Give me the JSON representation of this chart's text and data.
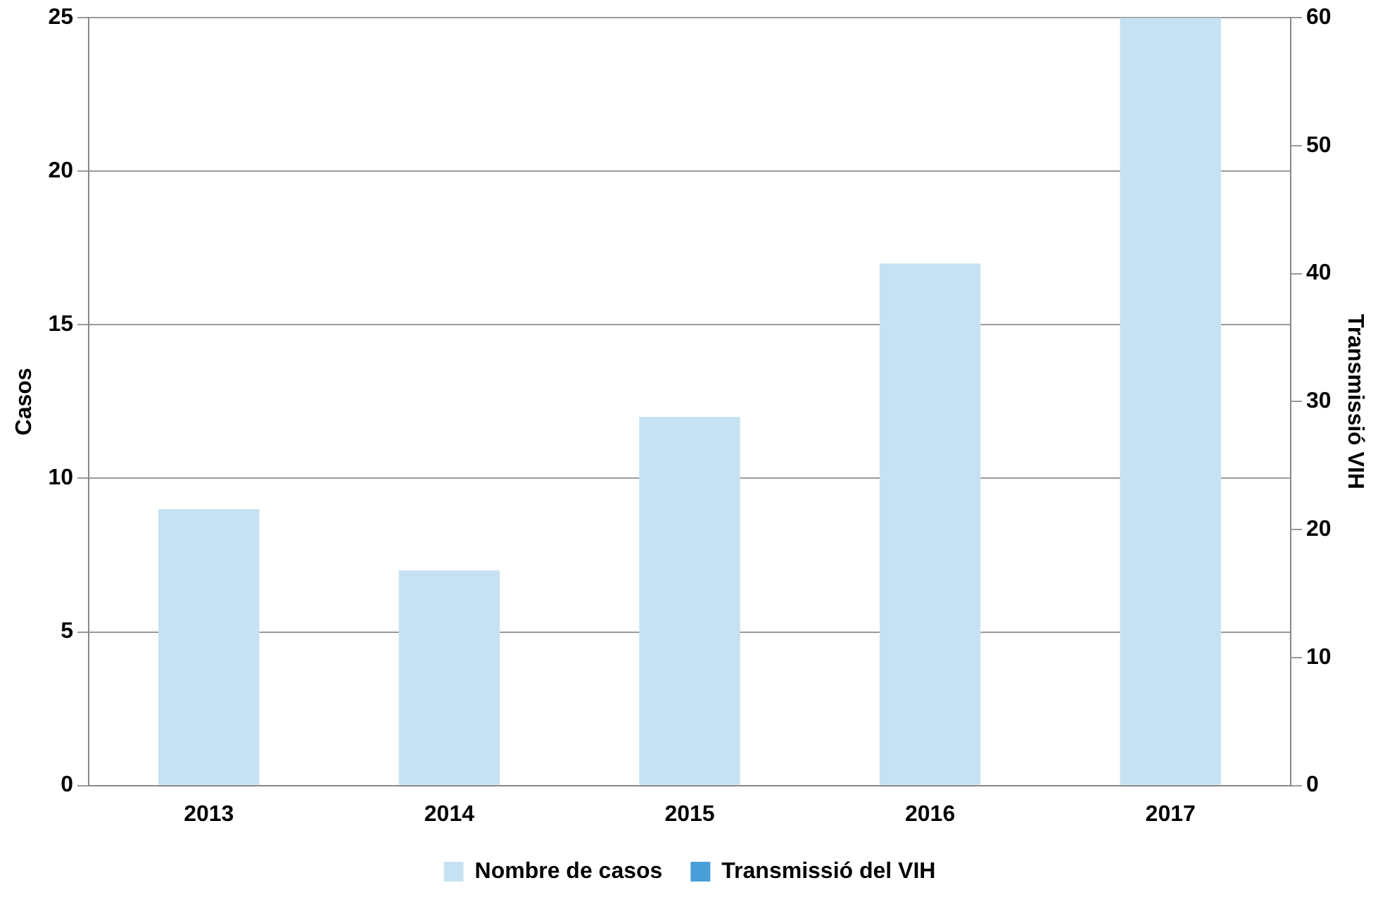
{
  "chart_data": {
    "type": "bar",
    "categories": [
      "2013",
      "2014",
      "2015",
      "2016",
      "2017"
    ],
    "series": [
      {
        "name": "Nombre de casos",
        "color": "#c6e2f2",
        "values": [
          9,
          7,
          12,
          17,
          25
        ]
      },
      {
        "name": "Transmissió del VIH",
        "color": "#4a9fd8",
        "values": [
          null,
          null,
          null,
          null,
          null
        ]
      }
    ],
    "ylabel": "Casos",
    "y2label": "Transmissió VIH",
    "ylim": [
      0,
      25
    ],
    "yticks": [
      0,
      5,
      10,
      15,
      20,
      25
    ],
    "y2lim": [
      0,
      60
    ],
    "y2ticks": [
      0,
      10,
      20,
      30,
      40,
      50,
      60
    ],
    "grid": "y",
    "legend": "bottom"
  }
}
